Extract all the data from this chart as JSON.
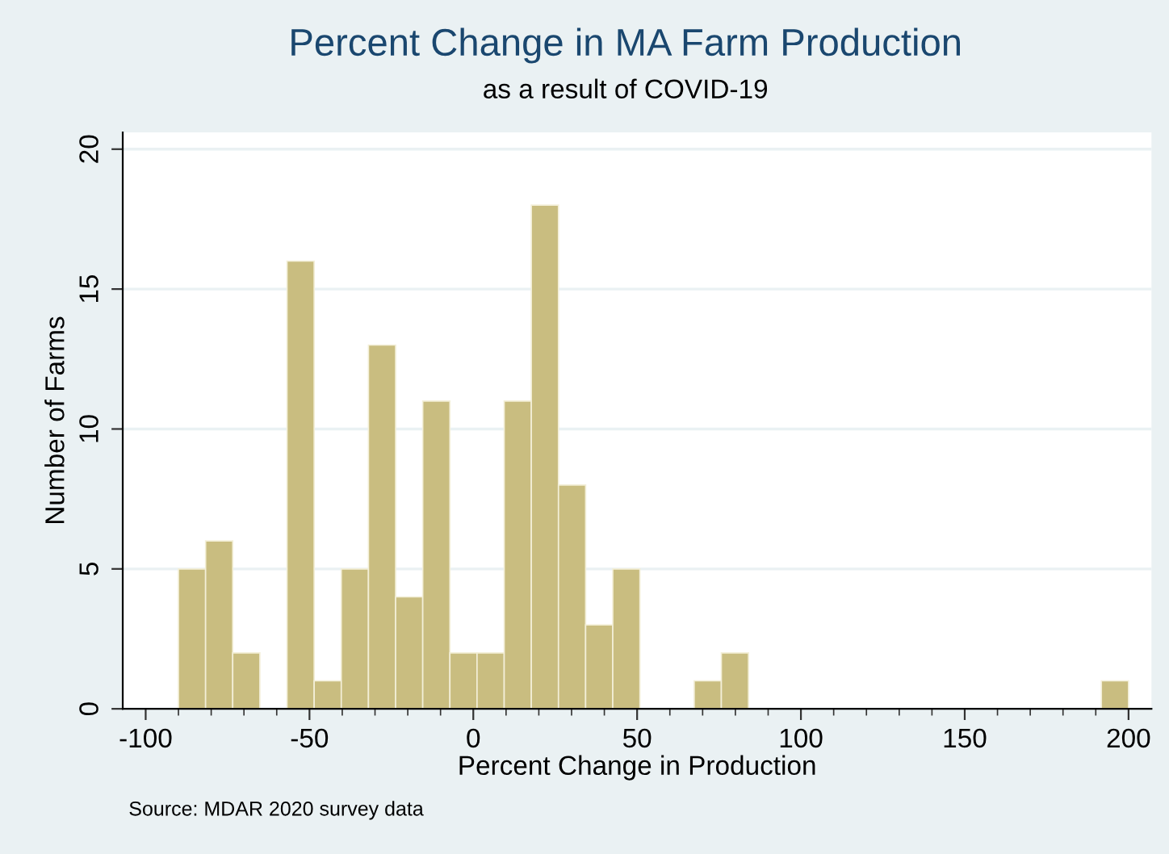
{
  "chart_data": {
    "type": "histogram",
    "title": "Percent Change in MA Farm Production",
    "subtitle": "as a result of COVID-19",
    "xlabel": "Percent Change in Production",
    "ylabel": "Number of Farms",
    "bins": [
      -90,
      -81.71,
      -73.43,
      -65.14,
      -56.86,
      -48.57,
      -40.29,
      -32,
      -23.71,
      -15.43,
      -7.14,
      1.14,
      9.43,
      17.71,
      26,
      34.29,
      42.57,
      50.86,
      59.14,
      67.43,
      75.71,
      84,
      92.29,
      100.57,
      108.86,
      117.14,
      125.43,
      133.71,
      142,
      150.29,
      158.57,
      166.86,
      175.14,
      183.43,
      191.71,
      200
    ],
    "values": [
      5,
      6,
      2,
      0,
      16,
      1,
      5,
      13,
      4,
      11,
      2,
      2,
      11,
      18,
      8,
      3,
      5,
      0,
      0,
      1,
      2,
      0,
      0,
      0,
      0,
      0,
      0,
      0,
      0,
      0,
      0,
      0,
      0,
      0,
      1
    ],
    "color": "#c9bd80",
    "xlim": [
      -107,
      207
    ],
    "ylim": [
      0,
      20.6
    ],
    "xticks": [
      -100,
      {
        "value": -90,
        "label": null
      },
      {
        "value": -80,
        "label": null
      },
      {
        "value": -70,
        "label": null
      },
      {
        "value": -60,
        "label": null
      },
      -50,
      {
        "value": -40,
        "label": null
      },
      {
        "value": -30,
        "label": null
      },
      {
        "value": -20,
        "label": null
      },
      {
        "value": -10,
        "label": null
      },
      0,
      {
        "value": 10,
        "label": null
      },
      {
        "value": 20,
        "label": null
      },
      {
        "value": 30,
        "label": null
      },
      {
        "value": 40,
        "label": null
      },
      50,
      {
        "value": 60,
        "label": null
      },
      {
        "value": 70,
        "label": null
      },
      {
        "value": 80,
        "label": null
      },
      {
        "value": 90,
        "label": null
      },
      100,
      {
        "value": 110,
        "label": null
      },
      {
        "value": 120,
        "label": null
      },
      {
        "value": 130,
        "label": null
      },
      {
        "value": 140,
        "label": null
      },
      150,
      {
        "value": 160,
        "label": null
      },
      {
        "value": 170,
        "label": null
      },
      {
        "value": 180,
        "label": null
      },
      {
        "value": 190,
        "label": null
      },
      200
    ],
    "yticks": [
      0,
      5,
      10,
      15,
      20
    ],
    "grid": "y",
    "annotations": [
      "Source: MDAR 2020 survey data"
    ]
  }
}
